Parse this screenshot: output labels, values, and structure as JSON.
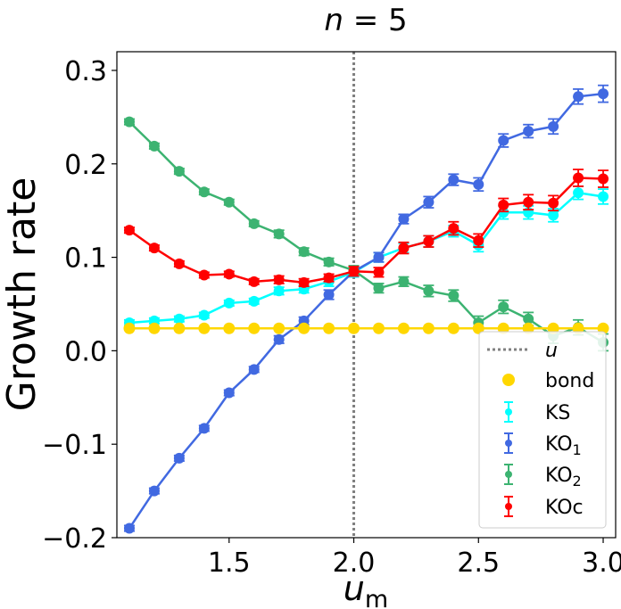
{
  "chart_data": {
    "type": "line",
    "title": "n = 5",
    "title_var": "n",
    "title_rest": " = 5",
    "xlabel": "u",
    "xlabel_sub": "m",
    "ylabel": "Growth rate",
    "xlim": [
      1.05,
      3.05
    ],
    "ylim": [
      -0.2,
      0.32
    ],
    "xticks": [
      1.5,
      2.0,
      2.5,
      3.0
    ],
    "xtick_labels": [
      "1.5",
      "2.0",
      "2.5",
      "3.0"
    ],
    "yticks": [
      -0.2,
      -0.1,
      0.0,
      0.1,
      0.2,
      0.3
    ],
    "ytick_labels": [
      "−0.2",
      "−0.1",
      "0.0",
      "0.1",
      "0.2",
      "0.3"
    ],
    "vline": {
      "x": 2.0,
      "label": "u",
      "color": "#808080"
    },
    "x": [
      1.1,
      1.2,
      1.3,
      1.4,
      1.5,
      1.6,
      1.7,
      1.8,
      1.9,
      2.0,
      2.1,
      2.2,
      2.3,
      2.4,
      2.5,
      2.6,
      2.7,
      2.8,
      2.9,
      3.0
    ],
    "series": [
      {
        "name": "bond",
        "kind": "scatter",
        "color": "#FFD700",
        "values": [
          0.024,
          0.024,
          0.024,
          0.024,
          0.024,
          0.024,
          0.024,
          0.024,
          0.024,
          0.024,
          0.024,
          0.024,
          0.024,
          0.024,
          0.024,
          0.024,
          0.024,
          0.024,
          0.024,
          0.024
        ]
      },
      {
        "name": "KS",
        "label_main": "KS",
        "label_sub": "",
        "kind": "errorbar",
        "color": "#00FFFF",
        "values": [
          0.03,
          0.032,
          0.034,
          0.038,
          0.051,
          0.053,
          0.064,
          0.066,
          0.074,
          0.084,
          0.1,
          0.11,
          0.117,
          0.128,
          0.113,
          0.148,
          0.148,
          0.145,
          0.169,
          0.165
        ],
        "errors": [
          0.003,
          0.003,
          0.003,
          0.003,
          0.003,
          0.003,
          0.004,
          0.004,
          0.005,
          0.005,
          0.005,
          0.005,
          0.006,
          0.006,
          0.007,
          0.007,
          0.007,
          0.007,
          0.007,
          0.008
        ]
      },
      {
        "name": "KO1",
        "label_main": "KO",
        "label_sub": "1",
        "kind": "errorbar",
        "color": "#4169E1",
        "values": [
          -0.19,
          -0.15,
          -0.115,
          -0.083,
          -0.045,
          -0.02,
          0.012,
          0.032,
          0.06,
          0.085,
          0.1,
          0.141,
          0.159,
          0.183,
          0.178,
          0.225,
          0.235,
          0.24,
          0.272,
          0.275
        ],
        "errors": [
          0.003,
          0.003,
          0.003,
          0.003,
          0.003,
          0.003,
          0.004,
          0.004,
          0.005,
          0.005,
          0.005,
          0.005,
          0.006,
          0.006,
          0.007,
          0.007,
          0.007,
          0.008,
          0.008,
          0.009
        ]
      },
      {
        "name": "KO2",
        "label_main": "KO",
        "label_sub": "2",
        "kind": "errorbar",
        "color": "#3CB371",
        "values": [
          0.245,
          0.219,
          0.192,
          0.17,
          0.159,
          0.136,
          0.125,
          0.106,
          0.095,
          0.086,
          0.067,
          0.074,
          0.064,
          0.059,
          0.03,
          0.047,
          0.034,
          0.016,
          0.025,
          0.009
        ],
        "errors": [
          0.003,
          0.003,
          0.003,
          0.003,
          0.003,
          0.003,
          0.004,
          0.004,
          0.004,
          0.005,
          0.005,
          0.005,
          0.006,
          0.006,
          0.007,
          0.007,
          0.007,
          0.008,
          0.008,
          0.009
        ]
      },
      {
        "name": "KOc",
        "label_main": "KOc",
        "label_sub": "",
        "kind": "errorbar",
        "color": "#FF0000",
        "values": [
          0.129,
          0.11,
          0.093,
          0.081,
          0.082,
          0.074,
          0.076,
          0.073,
          0.078,
          0.085,
          0.084,
          0.11,
          0.117,
          0.131,
          0.118,
          0.156,
          0.159,
          0.158,
          0.185,
          0.184
        ],
        "errors": [
          0.003,
          0.003,
          0.003,
          0.003,
          0.003,
          0.003,
          0.004,
          0.004,
          0.004,
          0.005,
          0.005,
          0.006,
          0.006,
          0.007,
          0.007,
          0.007,
          0.008,
          0.008,
          0.009,
          0.009
        ]
      }
    ],
    "legend_position": "bottom-right"
  }
}
